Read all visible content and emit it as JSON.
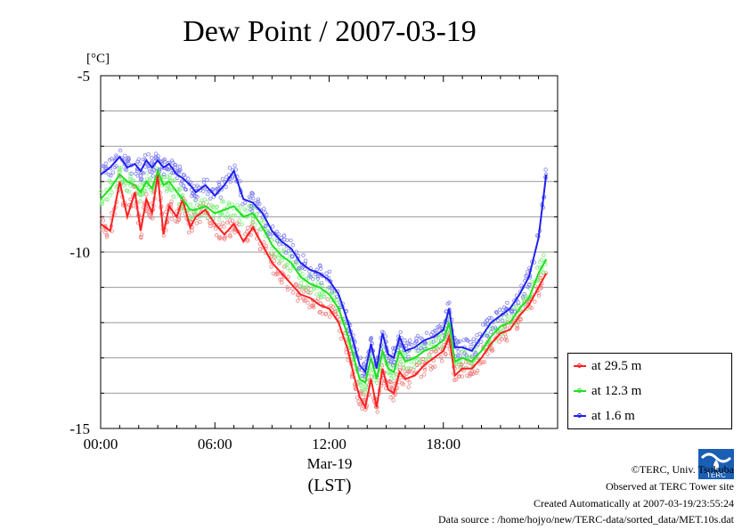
{
  "chart_data": {
    "type": "line",
    "title": "Dew Point / 2007-03-19",
    "ylabel": "[°C]",
    "xlabel_date": "Mar-19",
    "xlabel_tz": "(LST)",
    "ylim": [
      -15,
      -5
    ],
    "yticks": [
      "-5",
      "-10",
      "-15"
    ],
    "xlim": [
      0,
      24
    ],
    "xticks": [
      "00:00",
      "06:00",
      "12:00",
      "18:00"
    ],
    "grid": true,
    "legend_position": "bottom-right",
    "series": [
      {
        "name": "at 29.5 m",
        "color": "#ff2020",
        "scatter_color": "#f08080",
        "x": [
          0,
          0.5,
          1,
          1.4,
          1.8,
          2.1,
          2.4,
          2.7,
          3.0,
          3.3,
          3.6,
          4.0,
          4.3,
          4.7,
          5.0,
          5.5,
          6.0,
          6.5,
          7.0,
          7.5,
          8.0,
          8.5,
          9.0,
          9.5,
          10.0,
          10.5,
          11.0,
          11.5,
          12.0,
          12.5,
          13.0,
          13.3,
          13.6,
          13.9,
          14.2,
          14.5,
          14.8,
          15.1,
          15.4,
          15.7,
          16.0,
          16.5,
          17.0,
          17.5,
          18.0,
          18.3,
          18.6,
          19.0,
          19.5,
          20.0,
          20.5,
          21.0,
          21.5,
          22.0,
          22.5,
          23.0,
          23.4
        ],
        "y": [
          -9.2,
          -9.4,
          -8.0,
          -9.0,
          -8.3,
          -9.4,
          -8.5,
          -8.9,
          -7.8,
          -9.5,
          -8.7,
          -9.0,
          -8.5,
          -9.3,
          -9.0,
          -8.8,
          -9.2,
          -9.5,
          -9.2,
          -9.7,
          -9.3,
          -9.8,
          -10.3,
          -10.6,
          -10.9,
          -11.2,
          -11.3,
          -11.5,
          -11.6,
          -12.0,
          -12.8,
          -13.5,
          -14.1,
          -14.4,
          -13.6,
          -14.4,
          -13.3,
          -13.9,
          -14.0,
          -13.4,
          -13.6,
          -13.5,
          -13.2,
          -13.0,
          -12.8,
          -12.4,
          -13.5,
          -13.3,
          -13.3,
          -13.0,
          -12.6,
          -12.3,
          -12.2,
          -11.8,
          -11.5,
          -11.0,
          -10.6
        ]
      },
      {
        "name": "at 12.3 m",
        "color": "#20e020",
        "scatter_color": "#80f080",
        "x": [
          0,
          0.5,
          1,
          1.4,
          1.8,
          2.1,
          2.4,
          2.7,
          3.0,
          3.3,
          3.6,
          4.0,
          4.3,
          4.7,
          5.0,
          5.5,
          6.0,
          6.5,
          7.0,
          7.5,
          8.0,
          8.5,
          9.0,
          9.5,
          10.0,
          10.5,
          11.0,
          11.5,
          12.0,
          12.5,
          13.0,
          13.3,
          13.6,
          13.9,
          14.2,
          14.5,
          14.8,
          15.1,
          15.4,
          15.7,
          16.0,
          16.5,
          17.0,
          17.5,
          18.0,
          18.3,
          18.6,
          19.0,
          19.5,
          20.0,
          20.5,
          21.0,
          21.5,
          22.0,
          22.5,
          23.0,
          23.4
        ],
        "y": [
          -8.5,
          -8.2,
          -7.8,
          -8.0,
          -8.1,
          -8.3,
          -8.0,
          -8.2,
          -7.7,
          -8.1,
          -8.0,
          -8.3,
          -8.5,
          -8.8,
          -8.8,
          -8.7,
          -8.9,
          -8.8,
          -8.7,
          -9.0,
          -8.9,
          -9.3,
          -9.8,
          -10.1,
          -10.3,
          -10.7,
          -10.9,
          -11.0,
          -11.2,
          -11.6,
          -12.4,
          -13.0,
          -13.6,
          -13.7,
          -13.0,
          -13.6,
          -12.8,
          -13.3,
          -13.4,
          -12.8,
          -13.1,
          -13.0,
          -12.8,
          -12.7,
          -12.5,
          -12.0,
          -13.1,
          -13.0,
          -13.1,
          -12.8,
          -12.4,
          -12.1,
          -12.0,
          -11.6,
          -11.3,
          -10.6,
          -10.2
        ]
      },
      {
        "name": "at 1.6 m",
        "color": "#2020f0",
        "scatter_color": "#8080f0",
        "x": [
          0,
          0.5,
          1,
          1.4,
          1.8,
          2.1,
          2.4,
          2.7,
          3.0,
          3.3,
          3.6,
          4.0,
          4.3,
          4.7,
          5.0,
          5.5,
          6.0,
          6.5,
          7.0,
          7.5,
          8.0,
          8.5,
          9.0,
          9.5,
          10.0,
          10.5,
          11.0,
          11.5,
          12.0,
          12.5,
          13.0,
          13.3,
          13.6,
          13.9,
          14.2,
          14.5,
          14.8,
          15.1,
          15.4,
          15.7,
          16.0,
          16.5,
          17.0,
          17.5,
          18.0,
          18.3,
          18.6,
          19.0,
          19.5,
          20.0,
          20.5,
          21.0,
          21.5,
          22.0,
          22.5,
          23.0,
          23.4
        ],
        "y": [
          -7.8,
          -7.6,
          -7.3,
          -7.6,
          -7.5,
          -7.7,
          -7.4,
          -7.6,
          -7.4,
          -7.6,
          -7.5,
          -7.8,
          -7.9,
          -8.1,
          -8.3,
          -8.1,
          -8.4,
          -8.1,
          -7.7,
          -8.5,
          -8.6,
          -8.9,
          -9.4,
          -9.7,
          -9.9,
          -10.3,
          -10.5,
          -10.6,
          -10.8,
          -11.2,
          -12.0,
          -12.6,
          -13.2,
          -13.4,
          -12.6,
          -13.3,
          -12.3,
          -12.9,
          -13.0,
          -12.4,
          -12.8,
          -12.7,
          -12.5,
          -12.4,
          -12.2,
          -11.6,
          -12.7,
          -12.7,
          -12.8,
          -12.4,
          -12.0,
          -11.8,
          -11.6,
          -11.2,
          -10.7,
          -9.6,
          -7.8
        ]
      }
    ]
  },
  "footer": {
    "copyright": "©TERC, Univ. Tsukuba",
    "site": "Observed at TERC Tower site",
    "created": "Created Automatically at 2007-03-19/23:55:24",
    "source": "Data source : /home/hojyo/new/TERC-data/sorted_data/MET.10s.dat"
  },
  "logo_text": "TERC"
}
